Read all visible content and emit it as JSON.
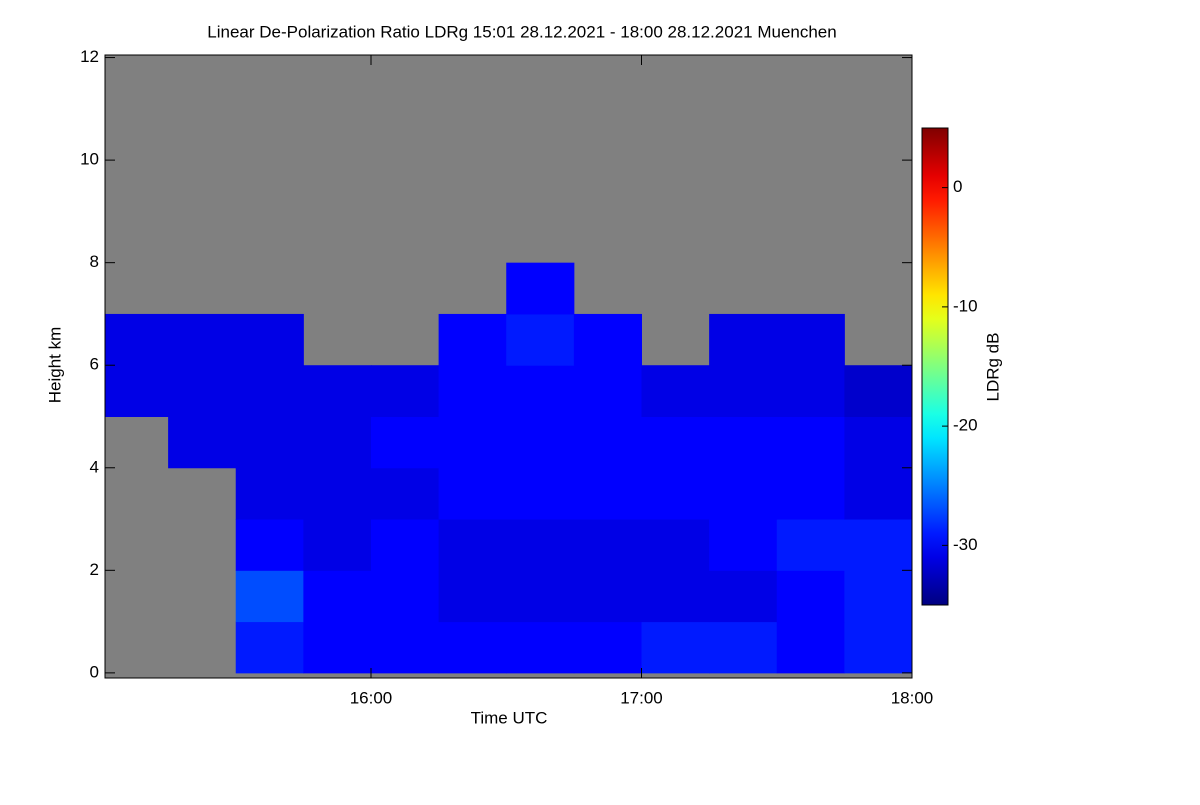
{
  "chart_data": {
    "type": "heatmap",
    "title": "Linear De-Polarization Ratio LDRg   15:01 28.12.2021 - 18:00 28.12.2021 Muenchen",
    "xlabel": "Time UTC",
    "ylabel": "Height km",
    "colorbar_label": "LDRg dB",
    "xlim": [
      15.0167,
      18
    ],
    "xticks": [
      {
        "value": 16,
        "label": "16:00"
      },
      {
        "value": 17,
        "label": "17:00"
      },
      {
        "value": 18,
        "label": "18:00"
      }
    ],
    "ylim": [
      -0.1,
      12.05
    ],
    "yticks": [
      0,
      2,
      4,
      6,
      8,
      10,
      12
    ],
    "clim": [
      -35,
      5
    ],
    "cticks": [
      0,
      -10,
      -20,
      -30
    ],
    "colormap": "jet",
    "missing_color": "#808080",
    "xbins": [
      15.0167,
      15.25,
      15.5,
      15.75,
      16,
      16.25,
      16.5,
      16.75,
      17,
      17.25,
      17.5,
      17.75,
      18
    ],
    "ybins": [
      0,
      1,
      2,
      3,
      4,
      5,
      6,
      7,
      8,
      9,
      10,
      11,
      12
    ],
    "z": [
      [
        null,
        null,
        -29,
        -30,
        -30,
        -30,
        -30,
        -30,
        -29,
        -29,
        -30,
        -29
      ],
      [
        null,
        null,
        -27,
        -30,
        -30,
        -31,
        -31,
        -31,
        -31,
        -31,
        -30,
        -29
      ],
      [
        null,
        null,
        -30,
        -31,
        -30,
        -31,
        -31,
        -31,
        -31,
        -30,
        -29,
        -29
      ],
      [
        null,
        null,
        -31,
        -31,
        -31,
        -30,
        -30,
        -30,
        -30,
        -30,
        -30,
        -31
      ],
      [
        null,
        -31,
        -31,
        -31,
        -30,
        -30,
        -30,
        -30,
        -30,
        -30,
        -30,
        -31
      ],
      [
        -31,
        -31,
        -31,
        -31,
        -31,
        -30,
        -30,
        -30,
        -31,
        -31,
        -31,
        -32
      ],
      [
        -31,
        -31,
        -31,
        null,
        null,
        -30,
        -29,
        -30,
        null,
        -31,
        -31,
        null
      ],
      [
        null,
        null,
        null,
        null,
        null,
        null,
        -30,
        null,
        null,
        null,
        null,
        null
      ],
      [
        null,
        null,
        null,
        null,
        null,
        null,
        null,
        null,
        null,
        null,
        null,
        null
      ],
      [
        null,
        null,
        null,
        null,
        null,
        null,
        null,
        null,
        null,
        null,
        null,
        null
      ],
      [
        null,
        null,
        null,
        null,
        null,
        null,
        null,
        null,
        null,
        null,
        null,
        null
      ],
      [
        null,
        null,
        null,
        null,
        null,
        null,
        null,
        null,
        null,
        null,
        null,
        null
      ]
    ]
  }
}
